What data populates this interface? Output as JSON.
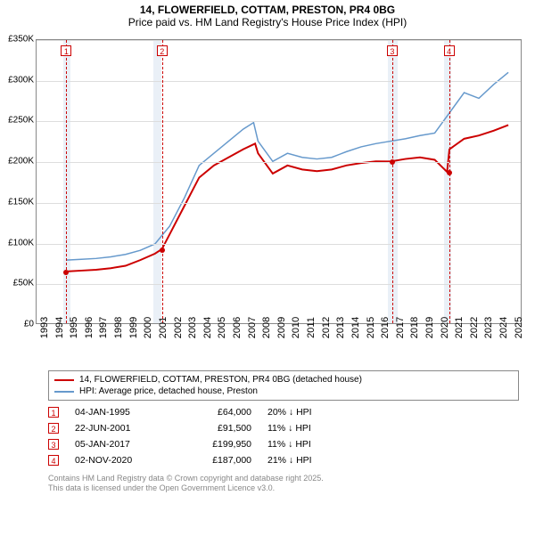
{
  "title": "14, FLOWERFIELD, COTTAM, PRESTON, PR4 0BG",
  "subtitle": "Price paid vs. HM Land Registry's House Price Index (HPI)",
  "chart": {
    "type": "line",
    "x_years": [
      1993,
      1994,
      1995,
      1996,
      1997,
      1998,
      1999,
      2000,
      2001,
      2002,
      2003,
      2004,
      2005,
      2006,
      2007,
      2008,
      2009,
      2010,
      2011,
      2012,
      2013,
      2014,
      2015,
      2016,
      2017,
      2018,
      2019,
      2020,
      2021,
      2022,
      2023,
      2024,
      2025
    ],
    "xlim": [
      1993,
      2025.8
    ],
    "ylim": [
      0,
      350000
    ],
    "ytick_step": 50000,
    "ytick_labels": [
      "£0",
      "£50K",
      "£100K",
      "£150K",
      "£200K",
      "£250K",
      "£300K",
      "£350K"
    ],
    "grid_color": "#dddddd",
    "border_color": "#888888",
    "background_color": "#ffffff",
    "shade_color": "#dce6f2",
    "shaded_ranges": [
      [
        1994.8,
        1995.3
      ],
      [
        2000.9,
        2001.4
      ],
      [
        2016.7,
        2017.4
      ],
      [
        2020.5,
        2021.0
      ]
    ],
    "series": [
      {
        "name": "property",
        "label": "14, FLOWERFIELD, COTTAM, PRESTON, PR4 0BG (detached house)",
        "color": "#cc0000",
        "line_width": 2,
        "points": [
          [
            1995.01,
            64000
          ],
          [
            1996,
            65000
          ],
          [
            1997,
            66000
          ],
          [
            1998,
            68000
          ],
          [
            1999,
            71000
          ],
          [
            2000,
            78000
          ],
          [
            2001,
            86000
          ],
          [
            2001.47,
            91500
          ],
          [
            2002,
            110000
          ],
          [
            2003,
            145000
          ],
          [
            2004,
            180000
          ],
          [
            2005,
            195000
          ],
          [
            2006,
            205000
          ],
          [
            2007,
            215000
          ],
          [
            2007.8,
            222000
          ],
          [
            2008,
            210000
          ],
          [
            2009,
            185000
          ],
          [
            2010,
            195000
          ],
          [
            2011,
            190000
          ],
          [
            2012,
            188000
          ],
          [
            2013,
            190000
          ],
          [
            2014,
            195000
          ],
          [
            2015,
            198000
          ],
          [
            2016,
            200000
          ],
          [
            2017.01,
            199950
          ],
          [
            2018,
            203000
          ],
          [
            2019,
            205000
          ],
          [
            2020,
            202000
          ],
          [
            2020.84,
            187000
          ],
          [
            2021,
            215000
          ],
          [
            2022,
            228000
          ],
          [
            2023,
            232000
          ],
          [
            2024,
            238000
          ],
          [
            2025,
            245000
          ]
        ]
      },
      {
        "name": "hpi",
        "label": "HPI: Average price, detached house, Preston",
        "color": "#6699cc",
        "line_width": 1.5,
        "points": [
          [
            1995,
            78000
          ],
          [
            1996,
            79000
          ],
          [
            1997,
            80000
          ],
          [
            1998,
            82000
          ],
          [
            1999,
            85000
          ],
          [
            2000,
            90000
          ],
          [
            2001,
            98000
          ],
          [
            2002,
            120000
          ],
          [
            2003,
            155000
          ],
          [
            2004,
            195000
          ],
          [
            2005,
            210000
          ],
          [
            2006,
            225000
          ],
          [
            2007,
            240000
          ],
          [
            2007.7,
            248000
          ],
          [
            2008,
            225000
          ],
          [
            2009,
            200000
          ],
          [
            2010,
            210000
          ],
          [
            2011,
            205000
          ],
          [
            2012,
            203000
          ],
          [
            2013,
            205000
          ],
          [
            2014,
            212000
          ],
          [
            2015,
            218000
          ],
          [
            2016,
            222000
          ],
          [
            2017,
            225000
          ],
          [
            2018,
            228000
          ],
          [
            2019,
            232000
          ],
          [
            2020,
            235000
          ],
          [
            2021,
            260000
          ],
          [
            2022,
            285000
          ],
          [
            2023,
            278000
          ],
          [
            2024,
            295000
          ],
          [
            2025,
            310000
          ]
        ]
      }
    ],
    "sale_markers": [
      {
        "n": 1,
        "x": 1995.01,
        "y": 64000,
        "color": "#cc0000"
      },
      {
        "n": 2,
        "x": 2001.47,
        "y": 91500,
        "color": "#cc0000"
      },
      {
        "n": 3,
        "x": 2017.01,
        "y": 199950,
        "color": "#cc0000"
      },
      {
        "n": 4,
        "x": 2020.84,
        "y": 187000,
        "color": "#cc0000"
      }
    ]
  },
  "legend": [
    {
      "color": "#cc0000",
      "label": "14, FLOWERFIELD, COTTAM, PRESTON, PR4 0BG (detached house)"
    },
    {
      "color": "#6699cc",
      "label": "HPI: Average price, detached house, Preston"
    }
  ],
  "sales": [
    {
      "n": 1,
      "color": "#cc0000",
      "date": "04-JAN-1995",
      "price": "£64,000",
      "delta": "20% ↓ HPI"
    },
    {
      "n": 2,
      "color": "#cc0000",
      "date": "22-JUN-2001",
      "price": "£91,500",
      "delta": "11% ↓ HPI"
    },
    {
      "n": 3,
      "color": "#cc0000",
      "date": "05-JAN-2017",
      "price": "£199,950",
      "delta": "11% ↓ HPI"
    },
    {
      "n": 4,
      "color": "#cc0000",
      "date": "02-NOV-2020",
      "price": "£187,000",
      "delta": "21% ↓ HPI"
    }
  ],
  "footer": [
    "Contains HM Land Registry data © Crown copyright and database right 2025.",
    "This data is licensed under the Open Government Licence v3.0."
  ]
}
